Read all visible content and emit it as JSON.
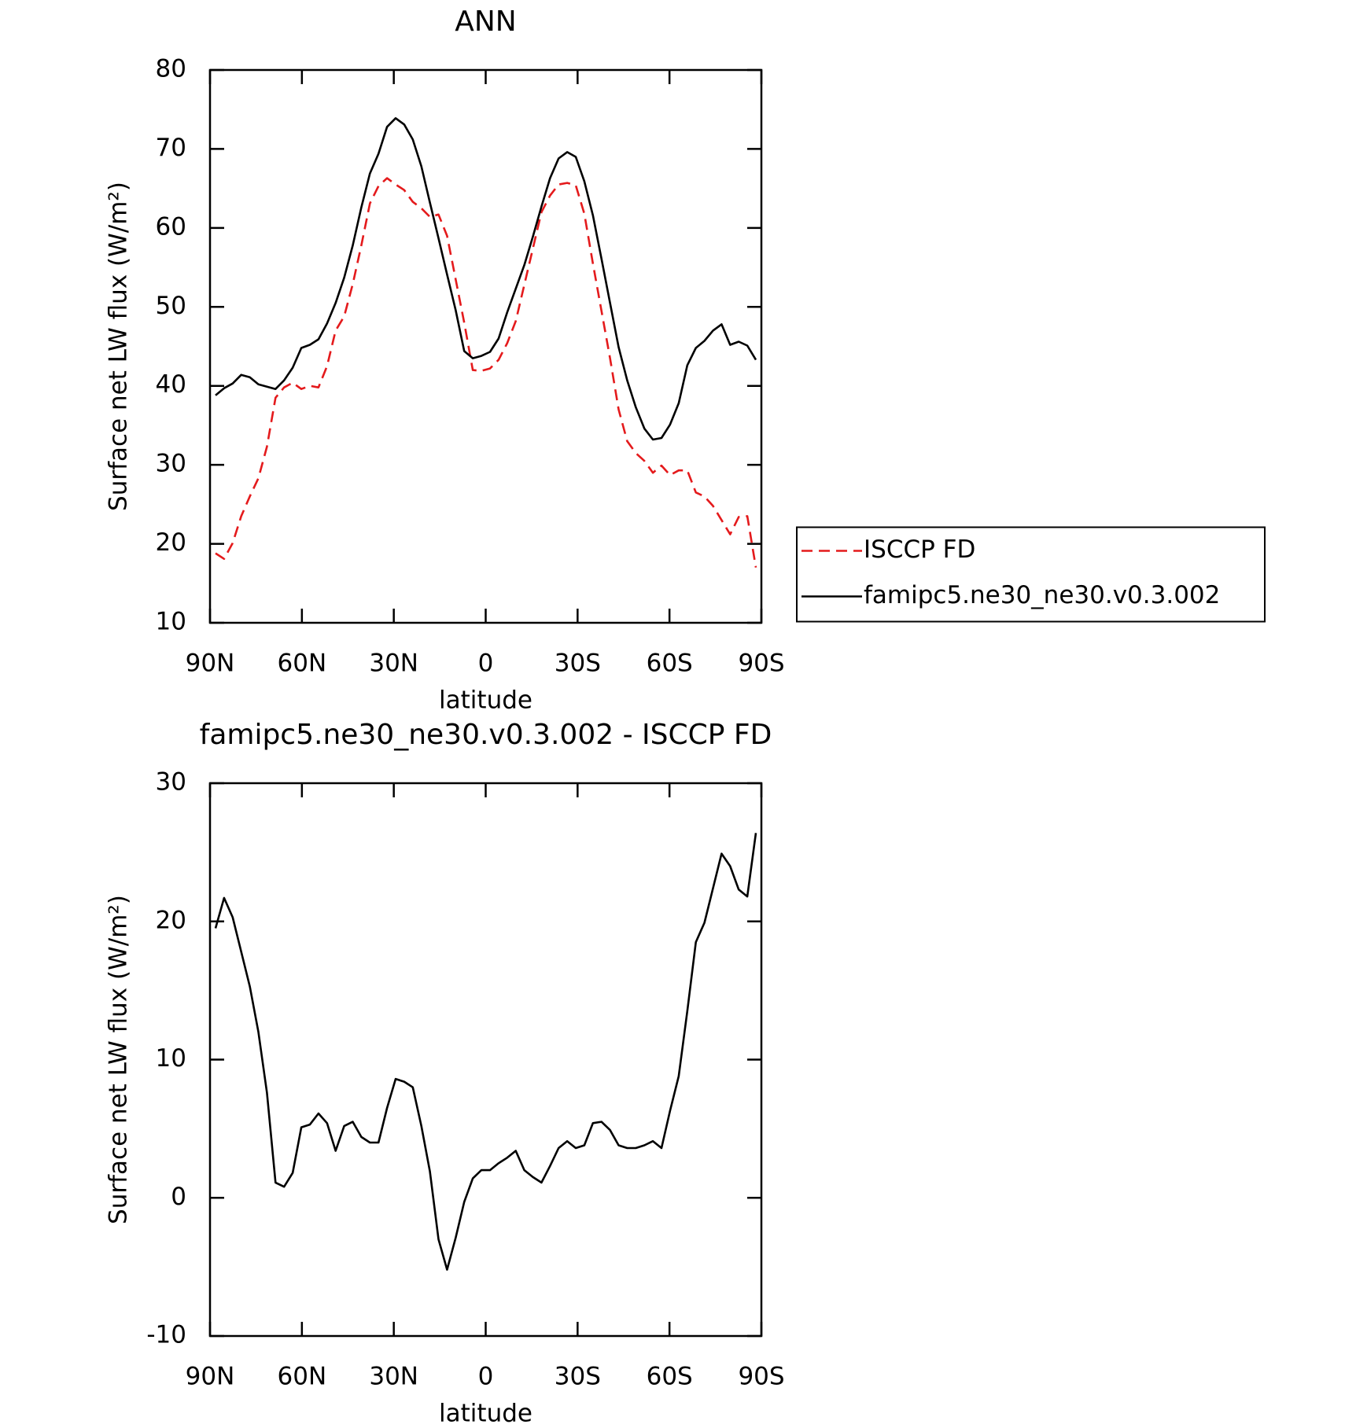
{
  "chart_data": [
    {
      "type": "line",
      "title": "ANN",
      "xlabel": "latitude",
      "ylabel": "Surface net LW flux (W/m²)",
      "x": [
        88.2,
        85.4,
        82.6,
        79.8,
        77,
        74.2,
        71.4,
        68.6,
        65.8,
        63,
        60.2,
        57.4,
        54.6,
        51.8,
        49,
        46.2,
        43.4,
        40.6,
        37.8,
        35,
        32.2,
        29.4,
        26.6,
        23.8,
        21,
        18.2,
        15.4,
        12.6,
        9.8,
        7,
        4.2,
        1.4,
        -1.4,
        -4.2,
        -7,
        -9.8,
        -12.6,
        -15.4,
        -18.2,
        -21,
        -23.8,
        -26.6,
        -29.4,
        -32.2,
        -35,
        -37.8,
        -40.6,
        -43.4,
        -46.2,
        -49,
        -51.8,
        -54.6,
        -57.4,
        -60.2,
        -63,
        -65.8,
        -68.6,
        -71.4,
        -74.2,
        -77,
        -79.8,
        -82.6,
        -85.4,
        -88.2
      ],
      "series": [
        {
          "name": "ISCCP FD",
          "color": "#e41a1c",
          "dashed": true,
          "values": [
            18.8,
            18.1,
            20.1,
            23.5,
            26,
            28.3,
            32.3,
            38.5,
            39.8,
            40.4,
            39.6,
            40,
            39.8,
            42.5,
            47,
            48.8,
            52.9,
            57.8,
            63.1,
            65.3,
            66.3,
            65.5,
            64.8,
            63.3,
            62.5,
            61.4,
            61.7,
            59,
            53.5,
            48,
            42,
            41.9,
            42.2,
            43.3,
            45.4,
            48.2,
            52.8,
            57.4,
            62,
            64.1,
            65.5,
            65.7,
            65.4,
            61.8,
            55.5,
            49.5,
            43.5,
            37,
            33,
            31.5,
            30.5,
            29,
            29.9,
            28.7,
            29.3,
            29.3,
            26.5,
            26,
            24.8,
            23,
            21.2,
            23.4,
            23.5,
            17
          ]
        },
        {
          "name": "famipc5.ne30_ne30.v0.3.002",
          "color": "#000000",
          "dashed": false,
          "values": [
            38.8,
            39.7,
            40.3,
            41.4,
            41.1,
            40.2,
            39.9,
            39.6,
            40.7,
            42.3,
            44.8,
            45.2,
            45.9,
            47.9,
            50.5,
            53.7,
            57.8,
            62.6,
            66.9,
            69.4,
            72.8,
            73.9,
            73.1,
            71.2,
            67.8,
            63.2,
            58.7,
            54.1,
            49.6,
            44.4,
            43.5,
            43.8,
            44.3,
            46,
            49.3,
            52.3,
            55.3,
            58.9,
            62.7,
            66.3,
            68.8,
            69.6,
            69,
            65.9,
            61.6,
            56.1,
            50.5,
            44.9,
            40.7,
            37.3,
            34.6,
            33.2,
            33.4,
            35.1,
            37.8,
            42.6,
            44.8,
            45.7,
            47,
            47.8,
            45.2,
            45.6,
            45.1,
            43.3
          ]
        }
      ],
      "xlim": [
        90,
        -90
      ],
      "xticks": [
        {
          "value": 90,
          "label": "90N"
        },
        {
          "value": 60,
          "label": "60N"
        },
        {
          "value": 30,
          "label": "30N"
        },
        0,
        {
          "value": -30,
          "label": "30S"
        },
        {
          "value": -60,
          "label": "60S"
        },
        {
          "value": -90,
          "label": "90S"
        }
      ],
      "ylim": [
        10,
        80
      ],
      "yticks": [
        10,
        20,
        30,
        40,
        50,
        60,
        70,
        80
      ],
      "legend": "right"
    },
    {
      "type": "line",
      "title": "famipc5.ne30_ne30.v0.3.002 - ISCCP FD",
      "xlabel": "latitude",
      "ylabel": "Surface net LW flux (W/m²)",
      "x": [
        88.2,
        85.4,
        82.6,
        79.8,
        77,
        74.2,
        71.4,
        68.6,
        65.8,
        63,
        60.2,
        57.4,
        54.6,
        51.8,
        49,
        46.2,
        43.4,
        40.6,
        37.8,
        35,
        32.2,
        29.4,
        26.6,
        23.8,
        21,
        18.2,
        15.4,
        12.6,
        9.8,
        7,
        4.2,
        1.4,
        -1.4,
        -4.2,
        -7,
        -9.8,
        -12.6,
        -15.4,
        -18.2,
        -21,
        -23.8,
        -26.6,
        -29.4,
        -32.2,
        -35,
        -37.8,
        -40.6,
        -43.4,
        -46.2,
        -49,
        -51.8,
        -54.6,
        -57.4,
        -60.2,
        -63,
        -65.8,
        -68.6,
        -71.4,
        -74.2,
        -77,
        -79.8,
        -82.6,
        -85.4,
        -88.2
      ],
      "series": [
        {
          "color": "#000000",
          "dashed": false,
          "values": [
            19.5,
            21.7,
            20.3,
            17.8,
            15.3,
            12,
            7.6,
            1.1,
            0.8,
            1.8,
            5.1,
            5.3,
            6.1,
            5.4,
            3.4,
            5.2,
            5.5,
            4.4,
            4,
            4,
            6.5,
            8.6,
            8.4,
            8,
            5.2,
            1.9,
            -3,
            -5.2,
            -2.9,
            -0.3,
            1.4,
            2,
            2,
            2.5,
            2.9,
            3.4,
            2,
            1.5,
            1.1,
            2.3,
            3.6,
            4.1,
            3.6,
            3.8,
            5.4,
            5.5,
            4.9,
            3.8,
            3.6,
            3.6,
            3.8,
            4.1,
            3.6,
            6.3,
            8.8,
            13.5,
            18.5,
            19.9,
            22.4,
            24.9,
            24,
            22.3,
            21.8,
            26.4
          ]
        }
      ],
      "xlim": [
        90,
        -90
      ],
      "xticks": [
        {
          "value": 90,
          "label": "90N"
        },
        {
          "value": 60,
          "label": "60N"
        },
        {
          "value": 30,
          "label": "30N"
        },
        0,
        {
          "value": -30,
          "label": "30S"
        },
        {
          "value": -60,
          "label": "60S"
        },
        {
          "value": -90,
          "label": "90S"
        }
      ],
      "ylim": [
        -10,
        30
      ],
      "yticks": [
        -10,
        0,
        10,
        20,
        30
      ]
    }
  ]
}
